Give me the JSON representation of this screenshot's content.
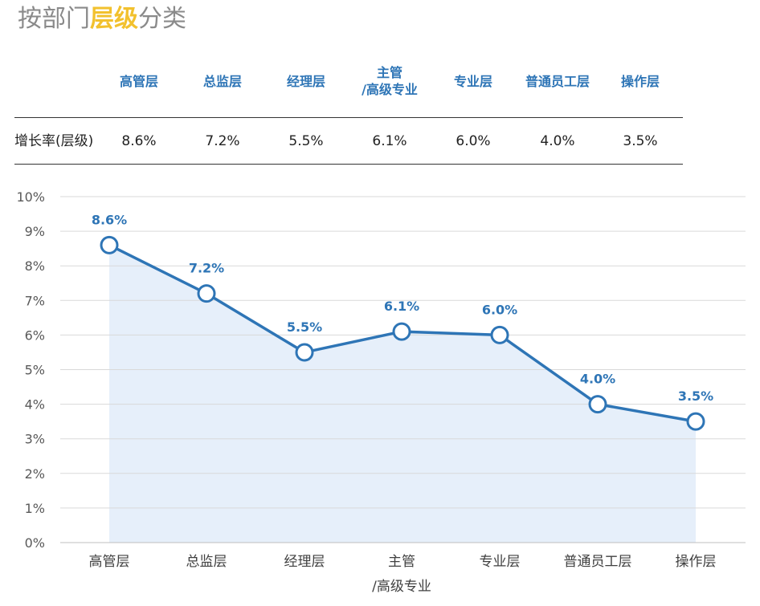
{
  "title": {
    "prefix": "按部门",
    "highlight": "层级",
    "suffix": "分类"
  },
  "table": {
    "row_label": "增长率(层级)",
    "headers": [
      {
        "line1": "高管层",
        "line2": ""
      },
      {
        "line1": "总监层",
        "line2": ""
      },
      {
        "line1": "经理层",
        "line2": ""
      },
      {
        "line1": "主管",
        "line2": "/高级专业"
      },
      {
        "line1": "专业层",
        "line2": ""
      },
      {
        "line1": "普通员工层",
        "line2": ""
      },
      {
        "line1": "操作层",
        "line2": ""
      }
    ],
    "values": [
      "8.6%",
      "7.2%",
      "5.5%",
      "6.1%",
      "6.0%",
      "4.0%",
      "3.5%"
    ]
  },
  "chart_data": {
    "type": "line",
    "categories": [
      "高管层",
      "总监层",
      "经理层",
      "主管\n/高级专业",
      "专业层",
      "普通员工层",
      "操作层"
    ],
    "values": [
      8.6,
      7.2,
      5.5,
      6.1,
      6.0,
      4.0,
      3.5
    ],
    "data_labels": [
      "8.6%",
      "7.2%",
      "5.5%",
      "6.1%",
      "6.0%",
      "4.0%",
      "3.5%"
    ],
    "ylim": [
      0,
      10
    ],
    "yticks": [
      "0%",
      "1%",
      "2%",
      "3%",
      "4%",
      "5%",
      "6%",
      "7%",
      "8%",
      "9%",
      "10%"
    ],
    "ylabel": "",
    "xlabel": "",
    "colors": {
      "line": "#2e75b6",
      "area": "#e6effa",
      "grid": "#d9d9d9",
      "marker_fill": "#ffffff"
    }
  }
}
